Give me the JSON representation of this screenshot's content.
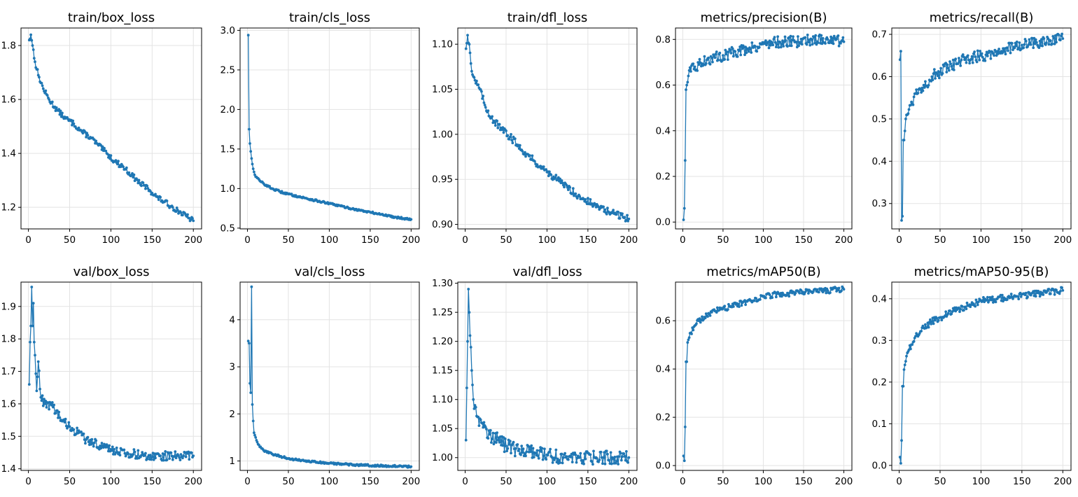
{
  "chart_data": [
    {
      "type": "line",
      "title": "train/box_loss",
      "xlabel": "",
      "ylabel": "",
      "xlim": [
        -9,
        210
      ],
      "ylim": [
        1.12,
        1.865
      ],
      "xticks": [
        0,
        50,
        100,
        150,
        200
      ],
      "yticks": [
        1.2,
        1.4,
        1.6,
        1.8
      ],
      "yticklabels": [
        "1.2",
        "1.4",
        "1.6",
        "1.8"
      ],
      "grid": true,
      "color": "#1f77b4",
      "series": [
        {
          "x": [
            1,
            3,
            5,
            8,
            12,
            18,
            25,
            35,
            45,
            55,
            65,
            75,
            85,
            95,
            105,
            115,
            125,
            135,
            145,
            155,
            165,
            175,
            185,
            195,
            200
          ],
          "y": [
            1.82,
            1.84,
            1.8,
            1.74,
            1.69,
            1.64,
            1.6,
            1.56,
            1.53,
            1.51,
            1.48,
            1.46,
            1.43,
            1.4,
            1.37,
            1.35,
            1.32,
            1.29,
            1.27,
            1.24,
            1.22,
            1.2,
            1.18,
            1.16,
            1.15
          ],
          "noise": 0.01
        }
      ]
    },
    {
      "type": "line",
      "title": "train/cls_loss",
      "xlabel": "",
      "ylabel": "",
      "xlim": [
        -9,
        210
      ],
      "ylim": [
        0.49,
        3.03
      ],
      "xticks": [
        0,
        50,
        100,
        150,
        200
      ],
      "yticks": [
        0.5,
        1.0,
        1.5,
        2.0,
        2.5,
        3.0
      ],
      "yticklabels": [
        "0.5",
        "1.0",
        "1.5",
        "2.0",
        "2.5",
        "3.0"
      ],
      "grid": true,
      "color": "#1f77b4",
      "series": [
        {
          "x": [
            1,
            2,
            3,
            4,
            5,
            7,
            10,
            15,
            20,
            30,
            40,
            50,
            70,
            100,
            130,
            160,
            180,
            200
          ],
          "y": [
            2.94,
            1.75,
            1.57,
            1.47,
            1.38,
            1.25,
            1.15,
            1.1,
            1.06,
            1.0,
            0.96,
            0.93,
            0.88,
            0.81,
            0.74,
            0.68,
            0.64,
            0.61
          ],
          "noise": 0.012
        }
      ]
    },
    {
      "type": "line",
      "title": "train/dfl_loss",
      "xlabel": "",
      "ylabel": "",
      "xlim": [
        -9,
        210
      ],
      "ylim": [
        0.895,
        1.118
      ],
      "xticks": [
        0,
        50,
        100,
        150,
        200
      ],
      "yticks": [
        0.9,
        0.95,
        1.0,
        1.05,
        1.1
      ],
      "yticklabels": [
        "0.90",
        "0.95",
        "1.00",
        "1.05",
        "1.10"
      ],
      "grid": true,
      "color": "#1f77b4",
      "series": [
        {
          "x": [
            1,
            3,
            5,
            8,
            12,
            18,
            25,
            35,
            45,
            55,
            65,
            75,
            85,
            95,
            105,
            115,
            125,
            135,
            145,
            155,
            165,
            175,
            185,
            195,
            200
          ],
          "y": [
            1.095,
            1.11,
            1.1,
            1.07,
            1.06,
            1.05,
            1.03,
            1.015,
            1.005,
            0.997,
            0.988,
            0.978,
            0.97,
            0.962,
            0.955,
            0.948,
            0.941,
            0.934,
            0.928,
            0.923,
            0.918,
            0.914,
            0.911,
            0.908,
            0.906
          ],
          "noise": 0.004
        }
      ]
    },
    {
      "type": "line",
      "title": "metrics/precision(B)",
      "xlabel": "",
      "ylabel": "",
      "xlim": [
        -9,
        210
      ],
      "ylim": [
        -0.03,
        0.85
      ],
      "xticks": [
        0,
        50,
        100,
        150,
        200
      ],
      "yticks": [
        0.0,
        0.2,
        0.4,
        0.6,
        0.8
      ],
      "yticklabels": [
        "0.0",
        "0.2",
        "0.4",
        "0.6",
        "0.8"
      ],
      "grid": true,
      "color": "#1f77b4",
      "series": [
        {
          "x": [
            1,
            2,
            3,
            4,
            5,
            7,
            10,
            15,
            20,
            30,
            40,
            50,
            60,
            70,
            80,
            90,
            100,
            120,
            140,
            160,
            180,
            200
          ],
          "y": [
            0.01,
            0.06,
            0.27,
            0.58,
            0.6,
            0.64,
            0.66,
            0.68,
            0.69,
            0.71,
            0.72,
            0.73,
            0.74,
            0.75,
            0.76,
            0.77,
            0.78,
            0.79,
            0.79,
            0.8,
            0.8,
            0.79
          ],
          "noise": 0.025
        }
      ]
    },
    {
      "type": "line",
      "title": "metrics/recall(B)",
      "xlabel": "",
      "ylabel": "",
      "xlim": [
        -9,
        210
      ],
      "ylim": [
        0.24,
        0.715
      ],
      "xticks": [
        0,
        50,
        100,
        150,
        200
      ],
      "yticks": [
        0.3,
        0.4,
        0.5,
        0.6,
        0.7
      ],
      "yticklabels": [
        "0.3",
        "0.4",
        "0.5",
        "0.6",
        "0.7"
      ],
      "grid": true,
      "color": "#1f77b4",
      "series": [
        {
          "x": [
            1,
            2,
            3,
            4,
            5,
            6,
            8,
            10,
            15,
            20,
            30,
            40,
            50,
            60,
            70,
            80,
            100,
            120,
            140,
            160,
            180,
            200
          ],
          "y": [
            0.64,
            0.66,
            0.26,
            0.27,
            0.45,
            0.45,
            0.5,
            0.51,
            0.54,
            0.56,
            0.58,
            0.6,
            0.61,
            0.62,
            0.63,
            0.64,
            0.65,
            0.66,
            0.67,
            0.68,
            0.68,
            0.69
          ],
          "noise": 0.015
        }
      ]
    },
    {
      "type": "line",
      "title": "val/box_loss",
      "xlabel": "",
      "ylabel": "",
      "xlim": [
        -9,
        210
      ],
      "ylim": [
        1.395,
        1.975
      ],
      "xticks": [
        0,
        50,
        100,
        150,
        200
      ],
      "yticks": [
        1.4,
        1.5,
        1.6,
        1.7,
        1.8,
        1.9
      ],
      "yticklabels": [
        "1.4",
        "1.5",
        "1.6",
        "1.7",
        "1.8",
        "1.9"
      ],
      "grid": true,
      "color": "#1f77b4",
      "series": [
        {
          "x": [
            1,
            2,
            3,
            4,
            5,
            6,
            7,
            8,
            10,
            12,
            15,
            20,
            30,
            40,
            50,
            60,
            70,
            80,
            90,
            100,
            110,
            120,
            140,
            160,
            180,
            200
          ],
          "y": [
            1.66,
            1.79,
            1.84,
            1.96,
            1.84,
            1.91,
            1.79,
            1.75,
            1.64,
            1.73,
            1.62,
            1.6,
            1.59,
            1.55,
            1.53,
            1.51,
            1.49,
            1.48,
            1.47,
            1.46,
            1.45,
            1.45,
            1.44,
            1.44,
            1.44,
            1.44
          ],
          "noise": 0.014
        }
      ]
    },
    {
      "type": "line",
      "title": "val/cls_loss",
      "xlabel": "",
      "ylabel": "",
      "xlim": [
        -9,
        210
      ],
      "ylim": [
        0.8,
        4.8
      ],
      "xticks": [
        0,
        50,
        100,
        150,
        200
      ],
      "yticks": [
        1,
        2,
        3,
        4
      ],
      "yticklabels": [
        "1",
        "2",
        "3",
        "4"
      ],
      "grid": true,
      "color": "#1f77b4",
      "series": [
        {
          "x": [
            1,
            2,
            3,
            4,
            5,
            6,
            7,
            8,
            10,
            12,
            15,
            20,
            30,
            40,
            50,
            70,
            100,
            130,
            160,
            200
          ],
          "y": [
            3.55,
            3.5,
            2.65,
            2.45,
            4.7,
            2.2,
            1.85,
            1.6,
            1.5,
            1.4,
            1.3,
            1.22,
            1.15,
            1.1,
            1.05,
            1.0,
            0.95,
            0.92,
            0.9,
            0.88
          ],
          "noise": 0.02
        }
      ]
    },
    {
      "type": "line",
      "title": "val/dfl_loss",
      "xlabel": "",
      "ylabel": "",
      "xlim": [
        -9,
        210
      ],
      "ylim": [
        0.978,
        1.302
      ],
      "xticks": [
        0,
        50,
        100,
        150,
        200
      ],
      "yticks": [
        1.0,
        1.05,
        1.1,
        1.15,
        1.2,
        1.25,
        1.3
      ],
      "yticklabels": [
        "1.00",
        "1.05",
        "1.10",
        "1.15",
        "1.20",
        "1.25",
        "1.30"
      ],
      "grid": true,
      "color": "#1f77b4",
      "series": [
        {
          "x": [
            1,
            2,
            3,
            4,
            5,
            6,
            7,
            8,
            10,
            12,
            15,
            20,
            30,
            40,
            50,
            60,
            80,
            100,
            120,
            140,
            160,
            180,
            200
          ],
          "y": [
            1.03,
            1.12,
            1.2,
            1.29,
            1.25,
            1.21,
            1.19,
            1.15,
            1.1,
            1.09,
            1.07,
            1.06,
            1.04,
            1.03,
            1.02,
            1.015,
            1.01,
            1.005,
            1.0,
            1.0,
            1.0,
            1.0,
            1.0
          ],
          "noise": 0.012
        }
      ]
    },
    {
      "type": "line",
      "title": "metrics/mAP50(B)",
      "xlabel": "",
      "ylabel": "",
      "xlim": [
        -9,
        210
      ],
      "ylim": [
        -0.02,
        0.76
      ],
      "xticks": [
        0,
        50,
        100,
        150,
        200
      ],
      "yticks": [
        0.0,
        0.2,
        0.4,
        0.6
      ],
      "yticklabels": [
        "0.0",
        "0.2",
        "0.4",
        "0.6"
      ],
      "grid": true,
      "color": "#1f77b4",
      "series": [
        {
          "x": [
            1,
            2,
            3,
            4,
            5,
            6,
            8,
            10,
            15,
            20,
            30,
            40,
            50,
            60,
            80,
            100,
            120,
            140,
            160,
            180,
            200
          ],
          "y": [
            0.04,
            0.02,
            0.16,
            0.43,
            0.43,
            0.51,
            0.53,
            0.55,
            0.58,
            0.6,
            0.62,
            0.64,
            0.65,
            0.66,
            0.68,
            0.7,
            0.71,
            0.715,
            0.72,
            0.725,
            0.73
          ],
          "noise": 0.012
        }
      ]
    },
    {
      "type": "line",
      "title": "metrics/mAP50-95(B)",
      "xlabel": "",
      "ylabel": "",
      "xlim": [
        -9,
        210
      ],
      "ylim": [
        -0.012,
        0.44
      ],
      "xticks": [
        0,
        50,
        100,
        150,
        200
      ],
      "yticks": [
        0.0,
        0.1,
        0.2,
        0.3,
        0.4
      ],
      "yticklabels": [
        "0.0",
        "0.1",
        "0.2",
        "0.3",
        "0.4"
      ],
      "grid": true,
      "color": "#1f77b4",
      "series": [
        {
          "x": [
            1,
            2,
            3,
            4,
            5,
            6,
            8,
            10,
            15,
            20,
            30,
            40,
            50,
            60,
            80,
            100,
            120,
            140,
            160,
            180,
            200
          ],
          "y": [
            0.02,
            0.005,
            0.06,
            0.19,
            0.19,
            0.23,
            0.25,
            0.27,
            0.29,
            0.31,
            0.33,
            0.345,
            0.355,
            0.365,
            0.38,
            0.395,
            0.4,
            0.405,
            0.41,
            0.415,
            0.42
          ],
          "noise": 0.008
        }
      ]
    }
  ]
}
